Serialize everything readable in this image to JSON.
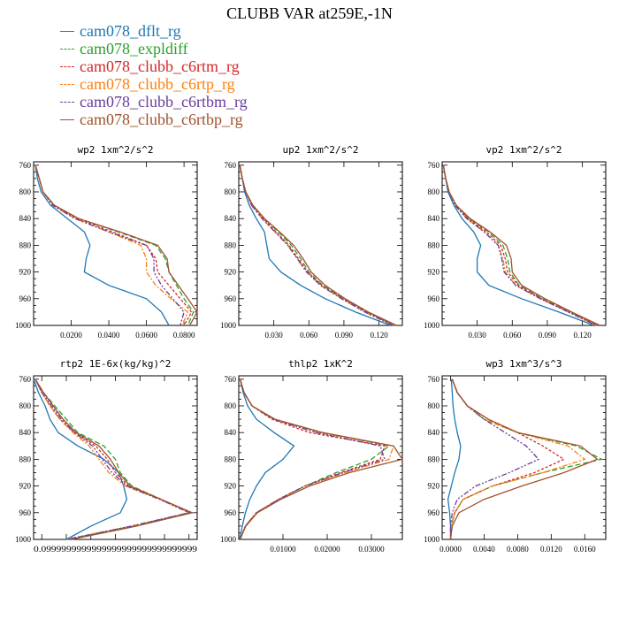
{
  "title": "CLUBB VAR at259E,-1N",
  "legend": [
    {
      "label": "cam078_dflt_rg",
      "color": "#1f77b4",
      "dash": ""
    },
    {
      "label": "cam078_expldiff",
      "color": "#2ca02c",
      "dash": "6,3"
    },
    {
      "label": "cam078_clubb_c6rtm_rg",
      "color": "#d62728",
      "dash": "3,2"
    },
    {
      "label": "cam078_clubb_c6rtp_rg",
      "color": "#ff7f0e",
      "dash": "6,2,2,2"
    },
    {
      "label": "cam078_clubb_c6rtbm_rg",
      "color": "#6a3d9a",
      "dash": "6,2,2,2,2,2"
    },
    {
      "label": "cam078_clubb_c6rtbp_rg",
      "color": "#a0522d",
      "dash": ""
    }
  ],
  "chart_data": [
    {
      "type": "line",
      "title": "wp2  1xm^2/s^2",
      "xlim": [
        0,
        0.087
      ],
      "ylim": [
        1000,
        755
      ],
      "xticks": [
        0.02,
        0.04,
        0.06,
        0.08
      ],
      "xticklabels": [
        "0.0200",
        "0.0400",
        "0.0600",
        "0.0800"
      ],
      "yticks": [
        760,
        800,
        840,
        880,
        920,
        960,
        1000
      ],
      "yticklabels": [
        "760",
        "800",
        "840",
        "880",
        "920",
        "960",
        "1000"
      ],
      "levels": [
        760,
        780,
        800,
        820,
        840,
        860,
        880,
        900,
        920,
        940,
        960,
        980,
        1000
      ],
      "series": [
        {
          "name": "cam078_dflt_rg",
          "values": [
            0.001,
            0.002,
            0.004,
            0.009,
            0.018,
            0.027,
            0.03,
            0.028,
            0.027,
            0.04,
            0.06,
            0.068,
            0.072
          ]
        },
        {
          "name": "cam078_expldiff",
          "values": [
            0.001,
            0.003,
            0.005,
            0.011,
            0.024,
            0.045,
            0.065,
            0.07,
            0.072,
            0.076,
            0.08,
            0.085,
            0.082
          ]
        },
        {
          "name": "cam078_clubb_c6rtm_rg",
          "values": [
            0.001,
            0.003,
            0.005,
            0.011,
            0.023,
            0.042,
            0.06,
            0.065,
            0.066,
            0.072,
            0.078,
            0.084,
            0.08
          ]
        },
        {
          "name": "cam078_clubb_c6rtp_rg",
          "values": [
            0.001,
            0.003,
            0.005,
            0.01,
            0.022,
            0.04,
            0.057,
            0.06,
            0.06,
            0.065,
            0.073,
            0.082,
            0.079
          ]
        },
        {
          "name": "cam078_clubb_c6rtbm_rg",
          "values": [
            0.001,
            0.003,
            0.005,
            0.01,
            0.022,
            0.04,
            0.06,
            0.064,
            0.064,
            0.068,
            0.074,
            0.08,
            0.078
          ]
        },
        {
          "name": "cam078_clubb_c6rtbp_rg",
          "values": [
            0.001,
            0.003,
            0.005,
            0.011,
            0.024,
            0.046,
            0.066,
            0.071,
            0.072,
            0.077,
            0.082,
            0.087,
            0.083
          ]
        }
      ]
    },
    {
      "type": "line",
      "title": "up2  1xm^2/s^2",
      "xlim": [
        0,
        0.14
      ],
      "ylim": [
        1000,
        755
      ],
      "xticks": [
        0.03,
        0.06,
        0.09,
        0.12
      ],
      "xticklabels": [
        "0.030",
        "0.060",
        "0.090",
        "0.120"
      ],
      "yticks": [
        760,
        800,
        840,
        880,
        920,
        960,
        1000
      ],
      "yticklabels": [
        "760",
        "800",
        "840",
        "880",
        "920",
        "960",
        "1000"
      ],
      "levels": [
        760,
        780,
        800,
        820,
        840,
        860,
        880,
        900,
        920,
        940,
        960,
        980,
        1000
      ],
      "series": [
        {
          "name": "cam078_dflt_rg",
          "values": [
            0.001,
            0.003,
            0.005,
            0.009,
            0.015,
            0.022,
            0.024,
            0.026,
            0.036,
            0.053,
            0.074,
            0.1,
            0.13
          ]
        },
        {
          "name": "cam078_expldiff",
          "values": [
            0.001,
            0.003,
            0.006,
            0.012,
            0.022,
            0.034,
            0.045,
            0.053,
            0.06,
            0.072,
            0.09,
            0.11,
            0.134
          ]
        },
        {
          "name": "cam078_clubb_c6rtm_rg",
          "values": [
            0.001,
            0.003,
            0.006,
            0.011,
            0.021,
            0.032,
            0.043,
            0.051,
            0.059,
            0.071,
            0.089,
            0.109,
            0.133
          ]
        },
        {
          "name": "cam078_clubb_c6rtp_rg",
          "values": [
            0.001,
            0.003,
            0.006,
            0.011,
            0.02,
            0.031,
            0.042,
            0.05,
            0.058,
            0.07,
            0.088,
            0.108,
            0.132
          ]
        },
        {
          "name": "cam078_clubb_c6rtbm_rg",
          "values": [
            0.001,
            0.003,
            0.006,
            0.011,
            0.02,
            0.031,
            0.042,
            0.05,
            0.058,
            0.07,
            0.088,
            0.108,
            0.132
          ]
        },
        {
          "name": "cam078_clubb_c6rtbp_rg",
          "values": [
            0.001,
            0.003,
            0.006,
            0.012,
            0.022,
            0.035,
            0.047,
            0.055,
            0.062,
            0.074,
            0.091,
            0.111,
            0.135
          ]
        }
      ]
    },
    {
      "type": "line",
      "title": "vp2  1xm^2/s^2",
      "xlim": [
        0,
        0.14
      ],
      "ylim": [
        1000,
        755
      ],
      "xticks": [
        0.03,
        0.06,
        0.09,
        0.12
      ],
      "xticklabels": [
        "0.030",
        "0.060",
        "0.090",
        "0.120"
      ],
      "yticks": [
        760,
        800,
        840,
        880,
        920,
        960,
        1000
      ],
      "yticklabels": [
        "760",
        "800",
        "840",
        "880",
        "920",
        "960",
        "1000"
      ],
      "levels": [
        760,
        780,
        800,
        820,
        840,
        860,
        880,
        900,
        920,
        940,
        960,
        980,
        1000
      ],
      "series": [
        {
          "name": "cam078_dflt_rg",
          "values": [
            0.001,
            0.003,
            0.005,
            0.01,
            0.017,
            0.027,
            0.033,
            0.03,
            0.03,
            0.04,
            0.068,
            0.1,
            0.13
          ]
        },
        {
          "name": "cam078_expldiff",
          "values": [
            0.001,
            0.003,
            0.006,
            0.012,
            0.023,
            0.04,
            0.052,
            0.056,
            0.058,
            0.066,
            0.086,
            0.11,
            0.134
          ]
        },
        {
          "name": "cam078_clubb_c6rtm_rg",
          "values": [
            0.001,
            0.003,
            0.006,
            0.012,
            0.022,
            0.038,
            0.05,
            0.054,
            0.056,
            0.065,
            0.085,
            0.109,
            0.133
          ]
        },
        {
          "name": "cam078_clubb_c6rtp_rg",
          "values": [
            0.001,
            0.003,
            0.006,
            0.011,
            0.021,
            0.036,
            0.048,
            0.052,
            0.054,
            0.063,
            0.084,
            0.108,
            0.132
          ]
        },
        {
          "name": "cam078_clubb_c6rtbm_rg",
          "values": [
            0.001,
            0.003,
            0.006,
            0.011,
            0.021,
            0.036,
            0.048,
            0.051,
            0.053,
            0.063,
            0.084,
            0.108,
            0.132
          ]
        },
        {
          "name": "cam078_clubb_c6rtbp_rg",
          "values": [
            0.001,
            0.003,
            0.006,
            0.012,
            0.024,
            0.041,
            0.055,
            0.059,
            0.06,
            0.068,
            0.088,
            0.111,
            0.135
          ]
        }
      ]
    },
    {
      "type": "line",
      "title": "rtp2  1E-6x(kg/kg)^2",
      "xlim": [
        0.0,
        1.0
      ],
      "ylim": [
        1000,
        755
      ],
      "xticks": [
        0.05,
        0.2,
        0.35,
        0.5,
        0.65,
        0.8,
        0.95
      ],
      "xticklabels": [
        "0.0999",
        "0.0999",
        "0.0999",
        "0.0999",
        "0.0999",
        "0.0999",
        "0.0999"
      ],
      "xtick_overlap_text": "0.0999999999999999999999999999999",
      "yticks": [
        760,
        800,
        840,
        880,
        920,
        960,
        1000
      ],
      "yticklabels": [
        "760",
        "800",
        "840",
        "880",
        "920",
        "960",
        "1000"
      ],
      "levels": [
        760,
        780,
        800,
        820,
        840,
        860,
        880,
        900,
        920,
        940,
        960,
        980,
        1000
      ],
      "series": [
        {
          "name": "cam078_dflt_rg",
          "values": [
            0.0,
            0.03,
            0.07,
            0.1,
            0.15,
            0.27,
            0.43,
            0.52,
            0.55,
            0.57,
            0.53,
            0.35,
            0.2
          ]
        },
        {
          "name": "cam078_expldiff",
          "values": [
            0.01,
            0.06,
            0.13,
            0.2,
            0.27,
            0.43,
            0.5,
            0.53,
            0.6,
            0.78,
            0.95,
            0.6,
            0.2
          ]
        },
        {
          "name": "cam078_clubb_c6rtm_rg",
          "values": [
            0.01,
            0.05,
            0.1,
            0.16,
            0.25,
            0.38,
            0.45,
            0.5,
            0.58,
            0.78,
            0.96,
            0.62,
            0.22
          ]
        },
        {
          "name": "cam078_clubb_c6rtp_rg",
          "values": [
            0.01,
            0.05,
            0.1,
            0.16,
            0.24,
            0.34,
            0.4,
            0.46,
            0.56,
            0.77,
            0.96,
            0.6,
            0.2
          ]
        },
        {
          "name": "cam078_clubb_c6rtbm_rg",
          "values": [
            0.01,
            0.05,
            0.11,
            0.17,
            0.25,
            0.36,
            0.42,
            0.48,
            0.57,
            0.77,
            0.95,
            0.6,
            0.2
          ]
        },
        {
          "name": "cam078_clubb_c6rtbp_rg",
          "values": [
            0.01,
            0.06,
            0.12,
            0.18,
            0.26,
            0.4,
            0.47,
            0.52,
            0.59,
            0.78,
            0.97,
            0.63,
            0.23
          ]
        }
      ]
    },
    {
      "type": "line",
      "title": "thlp2  1xK^2",
      "xlim": [
        0,
        0.037
      ],
      "ylim": [
        1000,
        755
      ],
      "xticks": [
        0.01,
        0.02,
        0.03
      ],
      "xticklabels": [
        "0.01000",
        "0.02000",
        "0.03000"
      ],
      "yticks": [
        760,
        800,
        840,
        880,
        920,
        960,
        1000
      ],
      "yticklabels": [
        "760",
        "800",
        "840",
        "880",
        "920",
        "960",
        "1000"
      ],
      "levels": [
        760,
        780,
        800,
        820,
        840,
        860,
        880,
        900,
        920,
        940,
        960,
        980,
        1000
      ],
      "series": [
        {
          "name": "cam078_dflt_rg",
          "values": [
            0.0003,
            0.001,
            0.002,
            0.004,
            0.008,
            0.0125,
            0.01,
            0.006,
            0.004,
            0.0025,
            0.0015,
            0.0008,
            0.0002
          ]
        },
        {
          "name": "cam078_expldiff",
          "values": [
            0.0003,
            0.0012,
            0.003,
            0.008,
            0.019,
            0.034,
            0.03,
            0.022,
            0.015,
            0.009,
            0.004,
            0.0015,
            0.0003
          ]
        },
        {
          "name": "cam078_clubb_c6rtm_rg",
          "values": [
            0.0003,
            0.0012,
            0.003,
            0.0075,
            0.016,
            0.033,
            0.032,
            0.023,
            0.015,
            0.009,
            0.004,
            0.0015,
            0.0003
          ]
        },
        {
          "name": "cam078_clubb_c6rtp_rg",
          "values": [
            0.0003,
            0.0012,
            0.003,
            0.008,
            0.018,
            0.035,
            0.034,
            0.024,
            0.015,
            0.009,
            0.004,
            0.0015,
            0.0003
          ]
        },
        {
          "name": "cam078_clubb_c6rtbm_rg",
          "values": [
            0.0003,
            0.0012,
            0.003,
            0.0078,
            0.0175,
            0.032,
            0.033,
            0.0235,
            0.015,
            0.009,
            0.004,
            0.0015,
            0.0003
          ]
        },
        {
          "name": "cam078_clubb_c6rtbp_rg",
          "values": [
            0.0003,
            0.0012,
            0.003,
            0.0082,
            0.019,
            0.035,
            0.037,
            0.025,
            0.016,
            0.0095,
            0.0042,
            0.0016,
            0.0003
          ]
        }
      ]
    },
    {
      "type": "line",
      "title": "wp3  1xm^3/s^3",
      "xlim": [
        -0.001,
        0.0185
      ],
      "ylim": [
        1000,
        755
      ],
      "xticks": [
        0.0,
        0.004,
        0.008,
        0.012,
        0.016
      ],
      "xticklabels": [
        "0.0000",
        "0.0040",
        "0.0080",
        "0.0120",
        "0.0160"
      ],
      "yticks": [
        760,
        800,
        840,
        880,
        920,
        960,
        1000
      ],
      "yticklabels": [
        "760",
        "800",
        "840",
        "880",
        "920",
        "960",
        "1000"
      ],
      "levels": [
        760,
        780,
        800,
        820,
        840,
        860,
        880,
        900,
        920,
        940,
        960,
        980,
        1000
      ],
      "series": [
        {
          "name": "cam078_dflt_rg",
          "values": [
            0.0001,
            0.0002,
            0.0003,
            0.0005,
            0.0008,
            0.0012,
            0.001,
            0.0005,
            0.0001,
            -0.0003,
            -0.0001,
            0.0,
            0.0
          ]
        },
        {
          "name": "cam078_expldiff",
          "values": [
            0.0002,
            0.0008,
            0.002,
            0.004,
            0.008,
            0.015,
            0.018,
            0.011,
            0.005,
            0.0015,
            0.0005,
            0.0001,
            0.0
          ]
        },
        {
          "name": "cam078_clubb_c6rtm_rg",
          "values": [
            0.0002,
            0.0008,
            0.002,
            0.0045,
            0.008,
            0.011,
            0.0135,
            0.01,
            0.005,
            0.0015,
            0.0005,
            0.0001,
            0.0
          ]
        },
        {
          "name": "cam078_clubb_c6rtp_rg",
          "values": [
            0.0002,
            0.0008,
            0.002,
            0.004,
            0.008,
            0.014,
            0.016,
            0.011,
            0.005,
            0.0015,
            0.0005,
            0.0001,
            0.0
          ]
        },
        {
          "name": "cam078_clubb_c6rtbm_rg",
          "values": [
            0.0002,
            0.0008,
            0.002,
            0.004,
            0.0065,
            0.009,
            0.0105,
            0.007,
            0.003,
            0.0008,
            0.0002,
            0.0,
            0.0
          ]
        },
        {
          "name": "cam078_clubb_c6rtbp_rg",
          "values": [
            0.0002,
            0.0008,
            0.002,
            0.0045,
            0.008,
            0.0155,
            0.0175,
            0.0135,
            0.0085,
            0.004,
            0.001,
            0.0002,
            0.0
          ]
        }
      ]
    }
  ]
}
